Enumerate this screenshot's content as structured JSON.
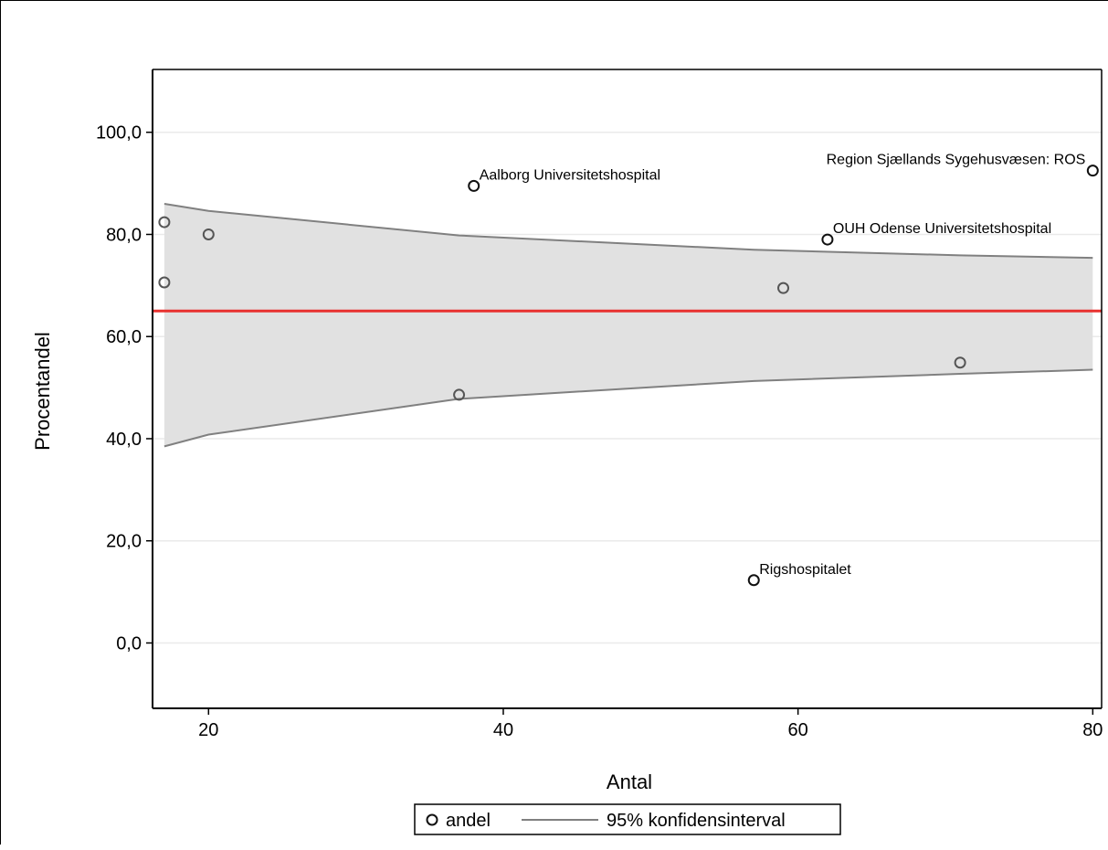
{
  "chart_data": {
    "type": "scatter",
    "title": "",
    "xlabel": "Antal",
    "ylabel": "Procentandel",
    "xlim": [
      16.2,
      80.6
    ],
    "ylim": [
      -12.8,
      112.3
    ],
    "x_ticks": [
      20,
      40,
      60,
      80
    ],
    "x_tick_labels": [
      "20",
      "40",
      "60",
      "80"
    ],
    "y_ticks": [
      0,
      20,
      40,
      60,
      80,
      100
    ],
    "y_tick_labels": [
      "0,0",
      "20,0",
      "40,0",
      "60,0",
      "80,0",
      "100,0"
    ],
    "grid": "horizontal",
    "legend_position": "bottom",
    "legend": [
      {
        "name": "andel",
        "marker": "circle"
      },
      {
        "name": "95% konfidensinterval",
        "marker": "line"
      }
    ],
    "reference_line": {
      "y": 65.0,
      "color": "#e8312f"
    },
    "confidence_band": {
      "x": [
        17,
        20,
        37,
        57,
        71,
        80
      ],
      "upper": [
        86.0,
        84.6,
        79.8,
        77.0,
        75.9,
        75.4
      ],
      "lower": [
        38.5,
        40.8,
        47.8,
        51.3,
        52.7,
        53.5
      ],
      "fill": "#e1e1e1",
      "line_color": "#808080"
    },
    "series": [
      {
        "name": "andel",
        "points": [
          {
            "x": 17,
            "y": 82.4,
            "label": ""
          },
          {
            "x": 17,
            "y": 70.6,
            "label": ""
          },
          {
            "x": 20,
            "y": 80.0,
            "label": ""
          },
          {
            "x": 37,
            "y": 48.6,
            "label": ""
          },
          {
            "x": 38,
            "y": 89.5,
            "label": "Aalborg Universitetshospital"
          },
          {
            "x": 57,
            "y": 12.3,
            "label": "Rigshospitalet"
          },
          {
            "x": 59,
            "y": 69.5,
            "label": ""
          },
          {
            "x": 62,
            "y": 79.0,
            "label": "OUH Odense Universitetshospital"
          },
          {
            "x": 71,
            "y": 54.9,
            "label": ""
          },
          {
            "x": 80,
            "y": 92.5,
            "label": "Region Sjællands Sygehusvæsen: ROS"
          }
        ]
      }
    ]
  }
}
